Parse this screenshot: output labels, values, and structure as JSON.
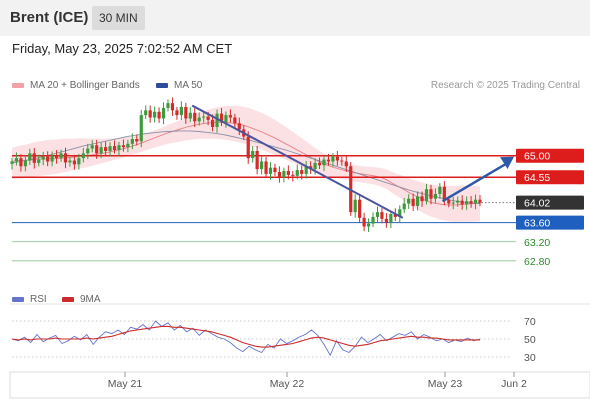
{
  "header": {
    "title": "Brent (ICE)",
    "timeframe": "30 MIN"
  },
  "datetime": "Friday, May 23, 2025 7:02:52 AM CET",
  "legend": {
    "ma20": "MA 20 + Bollinger Bands",
    "ma50": "MA 50",
    "credit": "Research © 2025 Trading Central"
  },
  "rsi_legend": {
    "rsi": "RSI",
    "ma": "9MA"
  },
  "colors": {
    "up": "#3d9a3d",
    "down": "#d42a2a",
    "ma20": "#e8868c",
    "ma50": "#2d4d9c",
    "resistance": "#dd1c1c",
    "support": "#1f5fbf",
    "target": "#7fb77f",
    "current": "#333333",
    "arrow": "#2d5aa8",
    "trend": "#4a559b",
    "rsi": "#6474cf",
    "rsi_ma": "#cc2b2b"
  },
  "chart_data": [
    {
      "type": "candlestick",
      "ylim": [
        62.4,
        66.25
      ],
      "x_tick_labels": [
        "May 21",
        "May 22",
        "May 23",
        "Jun 2"
      ],
      "price_levels": [
        {
          "label": "65.00",
          "value": 65.0,
          "kind": "resistance"
        },
        {
          "label": "64.55",
          "value": 64.55,
          "kind": "resistance"
        },
        {
          "label": "64.02",
          "value": 64.02,
          "kind": "current"
        },
        {
          "label": "63.60",
          "value": 63.6,
          "kind": "support"
        },
        {
          "label": "63.20",
          "value": 63.2,
          "kind": "target"
        },
        {
          "label": "62.80",
          "value": 62.8,
          "kind": "target"
        }
      ],
      "close_series": [
        64.88,
        64.95,
        64.78,
        64.9,
        65.05,
        64.85,
        64.92,
        64.98,
        64.88,
        65.0,
        64.95,
        65.05,
        64.86,
        64.9,
        64.82,
        64.95,
        65.05,
        65.15,
        65.22,
        65.05,
        65.18,
        65.1,
        65.2,
        65.12,
        65.22,
        65.18,
        65.25,
        65.35,
        65.3,
        65.85,
        65.95,
        65.8,
        65.92,
        65.78,
        66.0,
        66.1,
        65.95,
        65.85,
        66.02,
        65.78,
        65.9,
        65.72,
        65.8,
        65.82,
        65.75,
        65.6,
        65.88,
        65.7,
        65.85,
        65.8,
        65.68,
        65.55,
        65.4,
        64.95,
        65.1,
        64.72,
        64.88,
        64.62,
        64.75,
        64.66,
        64.55,
        64.68,
        64.6,
        64.58,
        64.7,
        64.62,
        64.78,
        64.72,
        64.85,
        64.8,
        64.92,
        64.88,
        64.98,
        64.9,
        64.88,
        64.78,
        63.82,
        64.08,
        63.7,
        63.52,
        63.58,
        63.72,
        63.82,
        63.68,
        63.6,
        63.78,
        63.72,
        63.88,
        64.0,
        64.1,
        63.95,
        64.15,
        64.05,
        64.3,
        64.1,
        64.2,
        64.35,
        64.08,
        64.0,
        64.02,
        64.06,
        63.98,
        64.05,
        64.0,
        64.08,
        64.02
      ],
      "ma20_series": [
        64.88,
        64.9,
        64.9,
        64.91,
        64.93,
        64.93,
        64.94,
        64.94,
        64.95,
        64.96,
        64.97,
        64.99,
        65.0,
        65.02,
        65.04,
        65.06,
        65.09,
        65.12,
        65.15,
        65.19,
        65.23,
        65.28,
        65.33,
        65.38,
        65.43,
        65.48,
        65.52,
        65.56,
        65.6,
        65.63,
        65.66,
        65.68,
        65.69,
        65.7,
        65.7,
        65.69,
        65.67,
        65.64,
        65.6,
        65.55,
        65.5,
        65.44,
        65.38,
        65.31,
        65.24,
        65.17,
        65.1,
        65.03,
        64.96,
        64.89,
        64.83,
        64.78,
        64.74,
        64.7,
        64.67,
        64.64,
        64.62,
        64.6,
        64.58,
        64.55,
        64.5,
        64.42,
        64.35,
        64.28,
        64.2,
        64.14,
        64.08,
        64.03,
        64.0,
        63.98,
        63.97,
        63.97,
        63.98,
        63.99,
        64.0,
        64.01
      ],
      "ma50_series": [
        64.85,
        64.88,
        64.92,
        64.96,
        65.0,
        65.05,
        65.1,
        65.15,
        65.2,
        65.24,
        65.28,
        65.32,
        65.36,
        65.4,
        65.43,
        65.46,
        65.48,
        65.5,
        65.51,
        65.52,
        65.52,
        65.51,
        65.49,
        65.47,
        65.44,
        65.4,
        65.36,
        65.32,
        65.27,
        65.22,
        65.17,
        65.12,
        65.06,
        65.0,
        64.94,
        64.88,
        64.82,
        64.76,
        64.7,
        64.64,
        64.58,
        64.52,
        64.46,
        64.4,
        64.34,
        64.28,
        64.23,
        64.18,
        64.14,
        64.1,
        64.06,
        64.03,
        64.01,
        64.0
      ],
      "trendline": [
        [
          66.05,
          0.385
        ],
        [
          63.7,
          0.835
        ]
      ],
      "projection_arrow": [
        [
          64.05,
          0.92
        ],
        [
          64.98,
          1.0
        ]
      ]
    },
    {
      "type": "line",
      "title": "RSI",
      "y_tick_labels": [
        "70",
        "50",
        "30"
      ],
      "ylim": [
        20,
        80
      ],
      "series": [
        {
          "name": "RSI",
          "values": [
            50,
            48,
            52,
            46,
            55,
            47,
            51,
            54,
            45,
            48,
            53,
            49,
            55,
            44,
            52,
            58,
            56,
            60,
            55,
            63,
            61,
            66,
            60,
            70,
            64,
            68,
            60,
            65,
            58,
            62,
            54,
            60,
            56,
            52,
            50,
            46,
            40,
            36,
            42,
            38,
            35,
            44,
            40,
            50,
            45,
            48,
            52,
            55,
            60,
            54,
            44,
            32,
            48,
            38,
            35,
            42,
            52,
            46,
            50,
            55,
            48,
            52,
            56,
            54,
            58,
            50,
            55,
            52,
            48,
            50,
            46,
            49,
            47,
            51,
            48,
            50
          ]
        },
        {
          "name": "9MA",
          "values": [
            50,
            49,
            50,
            49,
            50,
            50,
            50,
            51,
            50,
            50,
            50,
            50,
            51,
            50,
            51,
            52,
            53,
            55,
            57,
            59,
            60,
            61,
            62,
            63,
            64,
            64,
            63,
            63,
            62,
            61,
            60,
            59,
            58,
            56,
            54,
            52,
            49,
            46,
            44,
            42,
            41,
            41,
            42,
            43,
            44,
            45,
            47,
            49,
            51,
            52,
            51,
            49,
            47,
            45,
            43,
            42,
            43,
            44,
            46,
            48,
            49,
            50,
            51,
            52,
            53,
            52,
            52,
            51,
            51,
            50,
            49,
            49,
            49,
            49,
            49,
            49
          ]
        }
      ]
    }
  ]
}
